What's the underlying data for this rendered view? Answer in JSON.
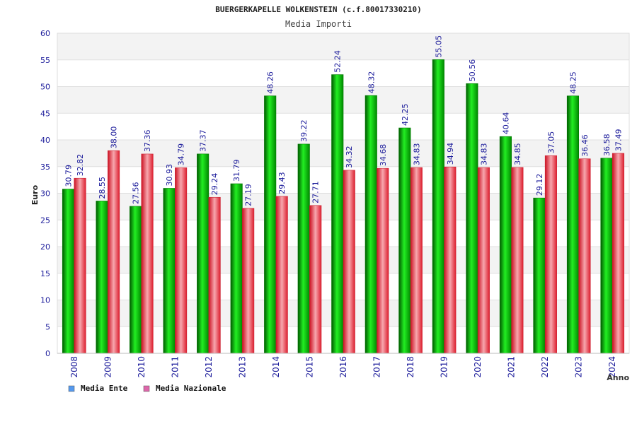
{
  "chart_data": {
    "type": "bar",
    "title": "BUERGERKAPELLE WOLKENSTEIN (c.f.80017330210)",
    "subtitle": "Media Importi",
    "ylabel": "Euro",
    "xlabel": "Anno",
    "ylim": [
      0,
      60
    ],
    "yticks": [
      0,
      5,
      10,
      15,
      20,
      25,
      30,
      35,
      40,
      45,
      50,
      55,
      60
    ],
    "grid": true,
    "legend_position": "bottom-left",
    "categories": [
      "2008",
      "2009",
      "2010",
      "2011",
      "2012",
      "2013",
      "2014",
      "2015",
      "2016",
      "2017",
      "2018",
      "2019",
      "2020",
      "2021",
      "2022",
      "2023",
      "2024"
    ],
    "series": [
      {
        "name": "Media Ente",
        "bar_color": "#00b000",
        "legend_color": "#5599ee",
        "values": [
          30.79,
          28.55,
          27.56,
          30.93,
          37.37,
          31.79,
          48.26,
          39.22,
          52.24,
          48.32,
          42.25,
          55.05,
          50.56,
          40.64,
          29.12,
          48.25,
          36.58
        ]
      },
      {
        "name": "Media Nazionale",
        "bar_color": "#ee3344",
        "legend_color": "#dd66aa",
        "values": [
          32.82,
          38.0,
          37.36,
          34.79,
          29.24,
          27.19,
          29.43,
          27.71,
          34.32,
          34.68,
          34.83,
          34.94,
          34.83,
          34.85,
          37.05,
          36.46,
          37.49
        ]
      }
    ]
  }
}
